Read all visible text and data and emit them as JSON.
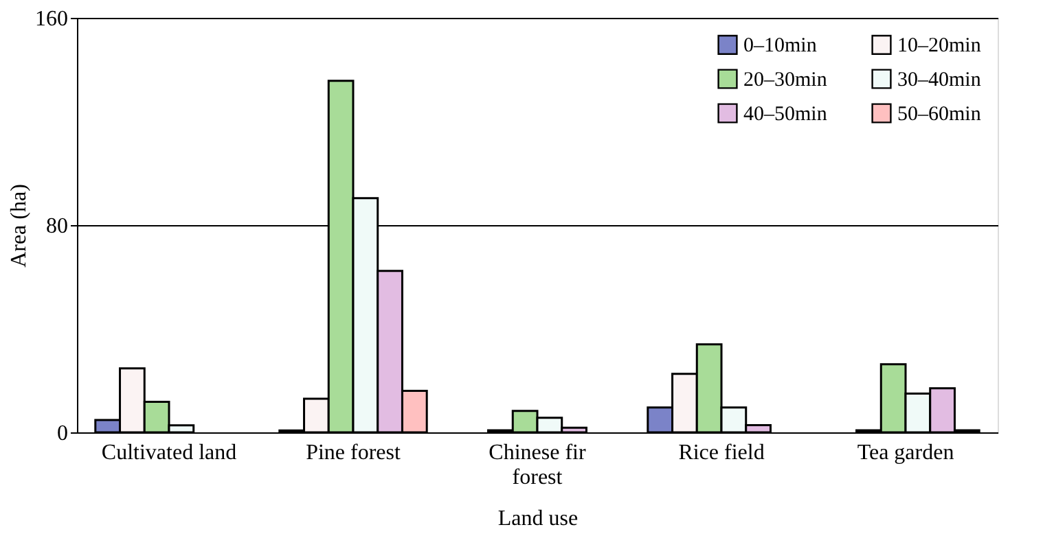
{
  "chart_data": {
    "type": "bar",
    "xlabel": "Land use",
    "ylabel": "Area (ha)",
    "categories": [
      "Cultivated land",
      "Pine forest",
      "Chinese fir forest",
      "Rice field",
      "Tea garden"
    ],
    "series": [
      {
        "name": "0–10min",
        "color": "#7b83c8",
        "values": [
          4.8,
          0.7,
          null,
          9.6,
          null
        ]
      },
      {
        "name": "10–20min",
        "color": "#fbf3f3",
        "values": [
          24.7,
          13,
          0.8,
          22.6,
          0.8
        ]
      },
      {
        "name": "20–30min",
        "color": "#a8dc98",
        "values": [
          11.8,
          135.7,
          8.3,
          34,
          26.3
        ]
      },
      {
        "name": "30–40min",
        "color": "#f0faf8",
        "values": [
          2.7,
          90.4,
          5.6,
          9.6,
          15
        ]
      },
      {
        "name": "40–50min",
        "color": "#e2bce2",
        "values": [
          null,
          62.3,
          1.8,
          2.8,
          17
        ]
      },
      {
        "name": "50–60min",
        "color": "#ffc0c0",
        "values": [
          null,
          16,
          null,
          null,
          0.8
        ]
      }
    ],
    "ylim": [
      0,
      160
    ],
    "yticks": [
      0,
      80,
      160
    ],
    "grid": "y",
    "legend": "top right"
  }
}
